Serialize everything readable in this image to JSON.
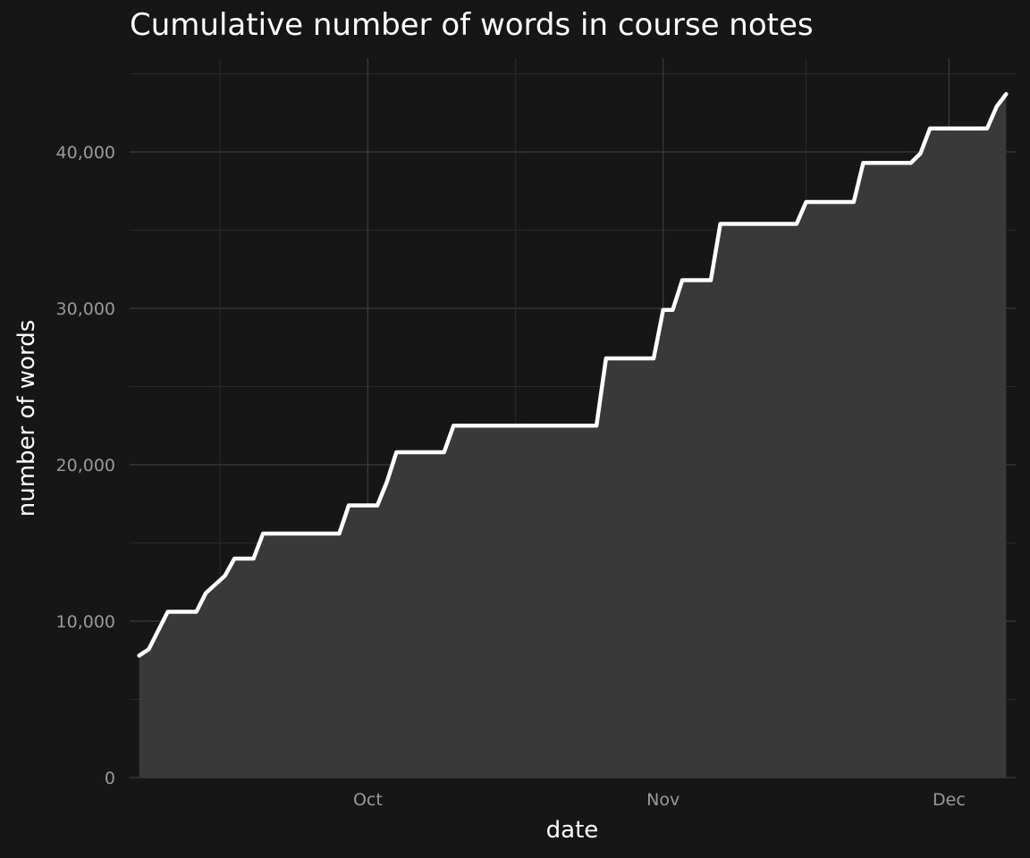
{
  "chart_data": {
    "type": "area",
    "title": "Cumulative number of words in course notes",
    "xlabel": "date",
    "ylabel": "number of words",
    "x_ticks": [
      {
        "date": "2023-10-01",
        "label": "Oct"
      },
      {
        "date": "2023-11-01",
        "label": "Nov"
      },
      {
        "date": "2023-12-01",
        "label": "Dec"
      }
    ],
    "y_ticks": [
      {
        "value": 0,
        "label": "0"
      },
      {
        "value": 10000,
        "label": "10,000"
      },
      {
        "value": 20000,
        "label": "20,000"
      },
      {
        "value": 30000,
        "label": "30,000"
      },
      {
        "value": 40000,
        "label": "40,000"
      }
    ],
    "xlim": [
      "2023-09-06",
      "2023-12-08"
    ],
    "ylim": [
      0,
      46000
    ],
    "grid": true,
    "series": [
      {
        "x": [
          "2023-09-07",
          "2023-09-08",
          "2023-09-10",
          "2023-09-11",
          "2023-09-13",
          "2023-09-14",
          "2023-09-16",
          "2023-09-17",
          "2023-09-19",
          "2023-09-20",
          "2023-09-22",
          "2023-09-23",
          "2023-09-24",
          "2023-09-25",
          "2023-09-26",
          "2023-09-27",
          "2023-09-28",
          "2023-09-29",
          "2023-09-30",
          "2023-10-01",
          "2023-10-02",
          "2023-10-03",
          "2023-10-04",
          "2023-10-05",
          "2023-10-06",
          "2023-10-07",
          "2023-10-08",
          "2023-10-09",
          "2023-10-10",
          "2023-10-11",
          "2023-10-12",
          "2023-10-13",
          "2023-10-14",
          "2023-10-15",
          "2023-10-16",
          "2023-10-17",
          "2023-10-18",
          "2023-10-19",
          "2023-10-20",
          "2023-10-21",
          "2023-10-22",
          "2023-10-23",
          "2023-10-24",
          "2023-10-25",
          "2023-10-26",
          "2023-10-27",
          "2023-10-28",
          "2023-10-29",
          "2023-10-30",
          "2023-10-31",
          "2023-11-01",
          "2023-11-02",
          "2023-11-03",
          "2023-11-04",
          "2023-11-05",
          "2023-11-06",
          "2023-11-07",
          "2023-11-08",
          "2023-11-09",
          "2023-11-10",
          "2023-11-11",
          "2023-11-12",
          "2023-11-13",
          "2023-11-14",
          "2023-11-15",
          "2023-11-16",
          "2023-11-17",
          "2023-11-18",
          "2023-11-19",
          "2023-11-20",
          "2023-11-21",
          "2023-11-22",
          "2023-11-23",
          "2023-11-24",
          "2023-11-25",
          "2023-11-26",
          "2023-11-27",
          "2023-11-28",
          "2023-11-29",
          "2023-11-30",
          "2023-12-01",
          "2023-12-02",
          "2023-12-03",
          "2023-12-04",
          "2023-12-05",
          "2023-12-06",
          "2023-12-07"
        ],
        "values": [
          7800,
          8200,
          10600,
          10600,
          10600,
          11800,
          12900,
          14000,
          14000,
          15600,
          15600,
          15600,
          15600,
          15600,
          15600,
          15600,
          15600,
          17400,
          17400,
          17400,
          17400,
          18900,
          20800,
          20800,
          20800,
          20800,
          20800,
          20800,
          22500,
          22500,
          22500,
          22500,
          22500,
          22500,
          22500,
          22500,
          22500,
          22500,
          22500,
          22500,
          22500,
          22500,
          22500,
          22500,
          26800,
          26800,
          26800,
          26800,
          26800,
          26800,
          29900,
          29900,
          31800,
          31800,
          31800,
          31800,
          35400,
          35400,
          35400,
          35400,
          35400,
          35400,
          35400,
          35400,
          35400,
          36800,
          36800,
          36800,
          36800,
          36800,
          36800,
          39300,
          39300,
          39300,
          39300,
          39300,
          39300,
          39900,
          41500,
          41500,
          41500,
          41500,
          41500,
          41500,
          41500,
          42900,
          43700
        ]
      }
    ],
    "colors": {
      "background": "#161616",
      "area_fill": "#393939",
      "line": "#ffffff",
      "grid_major": "#3c3c3c",
      "grid_minor": "#2a2a2a"
    }
  }
}
